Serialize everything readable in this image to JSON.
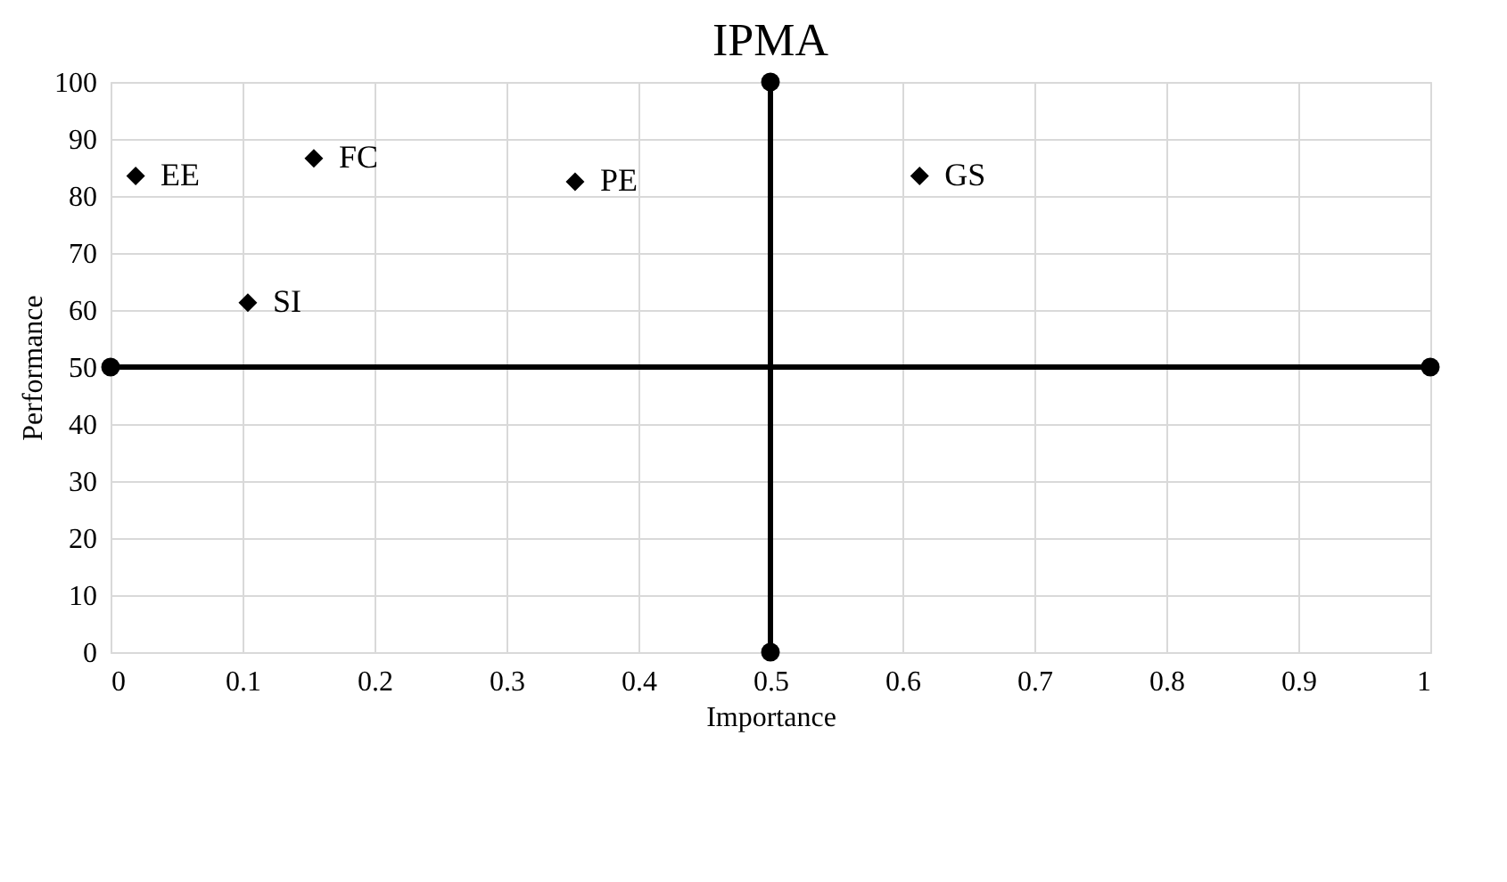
{
  "chart_data": {
    "type": "scatter",
    "title": "IPMA",
    "xlabel": "Importance",
    "ylabel": "Performance",
    "xlim": [
      0,
      1
    ],
    "xticks": [
      0,
      0.1,
      0.2,
      0.3,
      0.4,
      0.5,
      0.6,
      0.7,
      0.8,
      0.9,
      1
    ],
    "ylim": [
      0,
      100
    ],
    "yticks": [
      0,
      10,
      20,
      30,
      40,
      50,
      60,
      70,
      80,
      90,
      100
    ],
    "grid": true,
    "marker": "diamond",
    "series": [
      {
        "name": "EE",
        "color": "#000000",
        "x": [
          0.019
        ],
        "values": [
          83.5
        ]
      },
      {
        "name": "FC",
        "color": "#000000",
        "x": [
          0.154
        ],
        "values": [
          86.6
        ]
      },
      {
        "name": "PE",
        "color": "#000000",
        "x": [
          0.352
        ],
        "values": [
          82.5
        ]
      },
      {
        "name": "SI",
        "color": "#000000",
        "x": [
          0.104
        ],
        "values": [
          61.3
        ]
      },
      {
        "name": "GS",
        "color": "#000000",
        "x": [
          0.613
        ],
        "values": [
          83.5
        ]
      },
      {
        "type": "line",
        "marker": "circle",
        "line_style": "solid",
        "color": "#000000",
        "x": [
          0,
          1
        ],
        "values": [
          50,
          50
        ]
      },
      {
        "type": "line",
        "marker": "circle",
        "line_style": "solid",
        "color": "#000000",
        "x": [
          0.5,
          0.5
        ],
        "values": [
          0,
          100
        ]
      }
    ]
  }
}
